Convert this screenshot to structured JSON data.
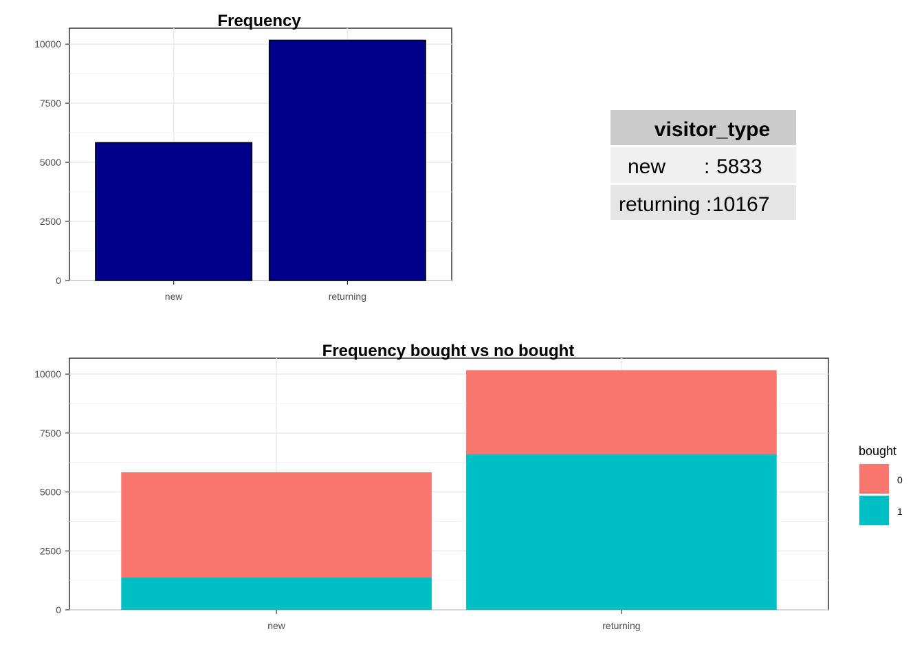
{
  "chart_data": [
    {
      "type": "bar",
      "title": "Frequency",
      "xlabel": "",
      "ylabel": "",
      "categories": [
        "new",
        "returning"
      ],
      "values": [
        5833,
        10167
      ],
      "ylim": [
        0,
        10675
      ],
      "yticks": [
        0,
        2500,
        5000,
        7500,
        10000
      ],
      "ytick_labels": [
        "0",
        "2500",
        "5000",
        "7500",
        "10000"
      ],
      "grid": true,
      "bar_color": "#00008B",
      "bar_outline": "#000000"
    },
    {
      "type": "bar",
      "stacked": true,
      "title": "Frequency bought vs no bought",
      "xlabel": "",
      "ylabel": "",
      "categories": [
        "new",
        "returning"
      ],
      "series": [
        {
          "name": "1",
          "values": [
            1370,
            6600
          ],
          "color": "#00BFC4"
        },
        {
          "name": "0",
          "values": [
            4463,
            3567
          ],
          "color": "#F8766D"
        }
      ],
      "ylim": [
        0,
        10675
      ],
      "yticks": [
        0,
        2500,
        5000,
        7500,
        10000
      ],
      "ytick_labels": [
        "0",
        "2500",
        "5000",
        "7500",
        "10000"
      ],
      "grid": true,
      "legend": {
        "title": "bought",
        "placement": "right",
        "entries": [
          {
            "label": "0",
            "color": "#F8766D"
          },
          {
            "label": "1",
            "color": "#00BFC4"
          }
        ]
      }
    },
    {
      "type": "table",
      "header": "visitor_type",
      "rows": [
        {
          "label": "new",
          "sep": ":",
          "value": "5833"
        },
        {
          "label": "returning",
          "sep": ":",
          "value": "10167"
        }
      ],
      "colors": {
        "header": "#CCCCCC",
        "row_odd": "#F0F0F0",
        "row_even": "#E5E5E5"
      }
    }
  ]
}
